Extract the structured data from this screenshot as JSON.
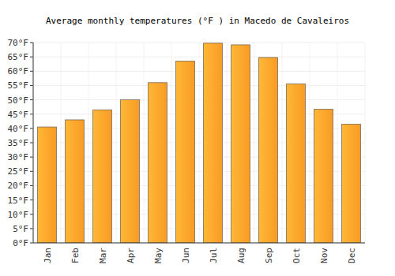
{
  "chart_data": {
    "type": "bar",
    "title": "Average monthly temperatures (°F ) in Macedo de Cavaleiros",
    "categories": [
      "Jan",
      "Feb",
      "Mar",
      "Apr",
      "May",
      "Jun",
      "Jul",
      "Aug",
      "Sep",
      "Oct",
      "Nov",
      "Dec"
    ],
    "values": [
      40.5,
      43,
      46.5,
      50,
      56,
      63.5,
      69.8,
      69.2,
      64.8,
      55.6,
      46.7,
      41.5
    ],
    "color": "#ffa833",
    "ylim": [
      0,
      70
    ],
    "yticks": [
      {
        "value": 0,
        "label": "0°F"
      },
      {
        "value": 5,
        "label": "5°F"
      },
      {
        "value": 10,
        "label": "10°F"
      },
      {
        "value": 15,
        "label": "15°F"
      },
      {
        "value": 20,
        "label": "20°F"
      },
      {
        "value": 25,
        "label": "25°F"
      },
      {
        "value": 30,
        "label": "30°F"
      },
      {
        "value": 35,
        "label": "35°F"
      },
      {
        "value": 40,
        "label": "40°F"
      },
      {
        "value": 45,
        "label": "45°F"
      },
      {
        "value": 50,
        "label": "50°F"
      },
      {
        "value": 55,
        "label": "55°F"
      },
      {
        "value": 60,
        "label": "60°F"
      },
      {
        "value": 65,
        "label": "65°F"
      },
      {
        "value": 70,
        "label": "70°F"
      }
    ],
    "grid": true
  }
}
